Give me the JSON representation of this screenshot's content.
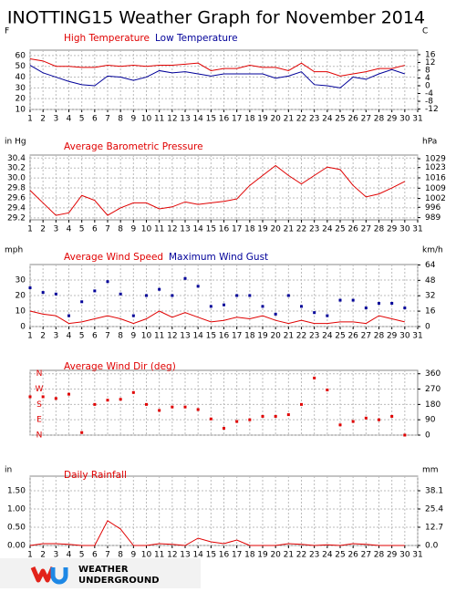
{
  "title": "INOTTING15 Weather Graph for November 2014",
  "logo": {
    "lines": [
      "WEATHER",
      "UNDERGROUND"
    ]
  },
  "chart_data": [
    {
      "type": "line",
      "y_unit": "F",
      "y2_unit": "C",
      "x": [
        1,
        2,
        3,
        4,
        5,
        6,
        7,
        8,
        9,
        10,
        11,
        12,
        13,
        14,
        15,
        16,
        17,
        18,
        19,
        20,
        21,
        22,
        23,
        24,
        25,
        26,
        27,
        28,
        29,
        30
      ],
      "xlim": [
        1,
        31
      ],
      "xticks": [
        1,
        2,
        3,
        4,
        5,
        6,
        7,
        8,
        9,
        10,
        11,
        12,
        13,
        14,
        15,
        16,
        17,
        18,
        19,
        20,
        21,
        22,
        23,
        24,
        25,
        26,
        27,
        28,
        29,
        30,
        31
      ],
      "ylim": [
        10,
        65
      ],
      "yticks": [
        10,
        20,
        30,
        40,
        50,
        60
      ],
      "y2lim": [
        -12.2,
        18.3
      ],
      "y2ticks": [
        -12,
        -8,
        -4,
        0,
        4,
        8,
        12,
        16
      ],
      "grid": true,
      "series": [
        {
          "name": "High Temperature",
          "color": "#e00000",
          "values": [
            57,
            55,
            50,
            50,
            49,
            49,
            51,
            50,
            51,
            50,
            51,
            51,
            52,
            53,
            46,
            48,
            48,
            51,
            49,
            49,
            46,
            53,
            45,
            45,
            41,
            43,
            45,
            48,
            48,
            51
          ]
        },
        {
          "name": "Low Temperature",
          "color": "#000099",
          "values": [
            51,
            44,
            40,
            36,
            33,
            32,
            41,
            40,
            37,
            40,
            46,
            44,
            45,
            43,
            41,
            43,
            43,
            43,
            43,
            39,
            41,
            45,
            33,
            32,
            30,
            40,
            38,
            43,
            47,
            43
          ]
        }
      ]
    },
    {
      "type": "line",
      "y_unit": "in Hg",
      "y2_unit": "hPa",
      "x": [
        1,
        2,
        3,
        4,
        5,
        6,
        7,
        8,
        9,
        10,
        11,
        12,
        13,
        14,
        15,
        16,
        17,
        18,
        19,
        20,
        21,
        22,
        23,
        24,
        25,
        26,
        27,
        28,
        29,
        30
      ],
      "xlim": [
        1,
        31
      ],
      "xticks": [
        1,
        2,
        3,
        4,
        5,
        6,
        7,
        8,
        9,
        10,
        11,
        12,
        13,
        14,
        15,
        16,
        17,
        18,
        19,
        20,
        21,
        22,
        23,
        24,
        25,
        26,
        27,
        28,
        29,
        30,
        31
      ],
      "ylim": [
        29.16,
        30.46
      ],
      "yticks": [
        29.2,
        29.4,
        29.6,
        29.8,
        {
          "value": 30.0,
          "label": "30.0"
        },
        30.2,
        30.4
      ],
      "y2lim": [
        987.5,
        1031.5
      ],
      "y2ticks": [
        989,
        996,
        1002,
        1009,
        1016,
        1023,
        1029
      ],
      "grid": true,
      "series": [
        {
          "name": "Average Barometric Pressure",
          "color": "#e00000",
          "values": [
            29.75,
            29.5,
            29.25,
            29.3,
            29.65,
            29.55,
            29.25,
            29.4,
            29.5,
            29.5,
            29.38,
            29.42,
            29.52,
            29.47,
            29.5,
            29.53,
            29.58,
            29.85,
            30.05,
            30.25,
            30.05,
            29.88,
            30.05,
            30.22,
            30.17,
            29.85,
            29.62,
            29.68,
            29.8,
            29.93
          ]
        }
      ]
    },
    {
      "type": "line",
      "y_unit": "mph",
      "y2_unit": "km/h",
      "x": [
        1,
        2,
        3,
        4,
        5,
        6,
        7,
        8,
        9,
        10,
        11,
        12,
        13,
        14,
        15,
        16,
        17,
        18,
        19,
        20,
        21,
        22,
        23,
        24,
        25,
        26,
        27,
        28,
        29,
        30
      ],
      "xlim": [
        1,
        31
      ],
      "xticks": [
        1,
        2,
        3,
        4,
        5,
        6,
        7,
        8,
        9,
        10,
        11,
        12,
        13,
        14,
        15,
        16,
        17,
        18,
        19,
        20,
        21,
        22,
        23,
        24,
        25,
        26,
        27,
        28,
        29,
        30,
        31
      ],
      "ylim": [
        0,
        40
      ],
      "yticks": [
        0,
        10,
        20,
        30
      ],
      "y2lim": [
        0,
        64.4
      ],
      "y2ticks": [
        0,
        16,
        32,
        48,
        64
      ],
      "grid": true,
      "series": [
        {
          "name": "Average Wind Speed",
          "color": "#e00000",
          "values": [
            10,
            8,
            7,
            2,
            3,
            5,
            7,
            5,
            2,
            5,
            10,
            6,
            9,
            6,
            3,
            4,
            6,
            5,
            7,
            4,
            2,
            4,
            2,
            2,
            3,
            3,
            2,
            7,
            5,
            3
          ]
        },
        {
          "name": "Maximum Wind Gust",
          "color": "#000099",
          "type": "scatter",
          "values": [
            25,
            22,
            21,
            7,
            16,
            23,
            29,
            21,
            7,
            20,
            24,
            20,
            31,
            26,
            13,
            14,
            20,
            20,
            13,
            8,
            20,
            13,
            9,
            7,
            17,
            17,
            12,
            15,
            15,
            12
          ]
        }
      ]
    },
    {
      "type": "scatter",
      "ytick_color": "#e00000",
      "x": [
        1,
        2,
        3,
        4,
        5,
        6,
        7,
        8,
        9,
        10,
        11,
        12,
        13,
        14,
        15,
        16,
        17,
        18,
        19,
        20,
        21,
        22,
        23,
        24,
        25,
        26,
        27,
        28,
        29,
        30
      ],
      "xlim": [
        1,
        31
      ],
      "ylim": [
        0,
        380
      ],
      "yticks": [
        {
          "value": 0,
          "label": "N"
        },
        {
          "value": 90,
          "label": "E"
        },
        {
          "value": 180,
          "label": "S"
        },
        {
          "value": 270,
          "label": "W"
        },
        {
          "value": 360,
          "label": "N"
        }
      ],
      "y2lim": [
        0,
        380
      ],
      "y2ticks": [
        0,
        90,
        180,
        270,
        360
      ],
      "grid": true,
      "series": [
        {
          "name": "Average Wind Dir (deg)",
          "color": "#e00000",
          "type": "scatter",
          "values": [
            225,
            225,
            215,
            240,
            15,
            180,
            205,
            210,
            250,
            180,
            145,
            165,
            165,
            150,
            95,
            40,
            80,
            90,
            110,
            110,
            120,
            180,
            335,
            265,
            60,
            80,
            100,
            90,
            110,
            0
          ]
        }
      ]
    },
    {
      "type": "line",
      "y_unit": "in",
      "y2_unit": "mm",
      "x": [
        1,
        2,
        3,
        4,
        5,
        6,
        7,
        8,
        9,
        10,
        11,
        12,
        13,
        14,
        15,
        16,
        17,
        18,
        19,
        20,
        21,
        22,
        23,
        24,
        25,
        26,
        27,
        28,
        29,
        30
      ],
      "xlim": [
        1,
        31
      ],
      "xticks": [
        1,
        2,
        3,
        4,
        5,
        6,
        7,
        8,
        9,
        10,
        11,
        12,
        13,
        14,
        15,
        16,
        17,
        18,
        19,
        20,
        21,
        22,
        23,
        24,
        25,
        26,
        27,
        28,
        29,
        30,
        31
      ],
      "ylim": [
        0,
        1.9
      ],
      "yticks": [
        {
          "value": 0,
          "label": "0.00"
        },
        {
          "value": 0.5,
          "label": "0.50"
        },
        {
          "value": 1,
          "label": "1.00"
        },
        {
          "value": 1.5,
          "label": "1.50"
        }
      ],
      "y2lim": [
        0,
        48.26
      ],
      "y2ticks": [
        {
          "value": 0,
          "label": "0.0"
        },
        12.7,
        25.4,
        38.1
      ],
      "grid": true,
      "series": [
        {
          "name": "Daily Rainfall",
          "color": "#e00000",
          "values": [
            0,
            0.05,
            0.05,
            0.03,
            0,
            0,
            0.68,
            0.45,
            0,
            0,
            0.05,
            0.03,
            0,
            0.2,
            0.1,
            0.05,
            0.15,
            0,
            0,
            0,
            0.05,
            0.03,
            0,
            0.02,
            0,
            0.05,
            0.03,
            0,
            0,
            0
          ]
        }
      ]
    }
  ]
}
